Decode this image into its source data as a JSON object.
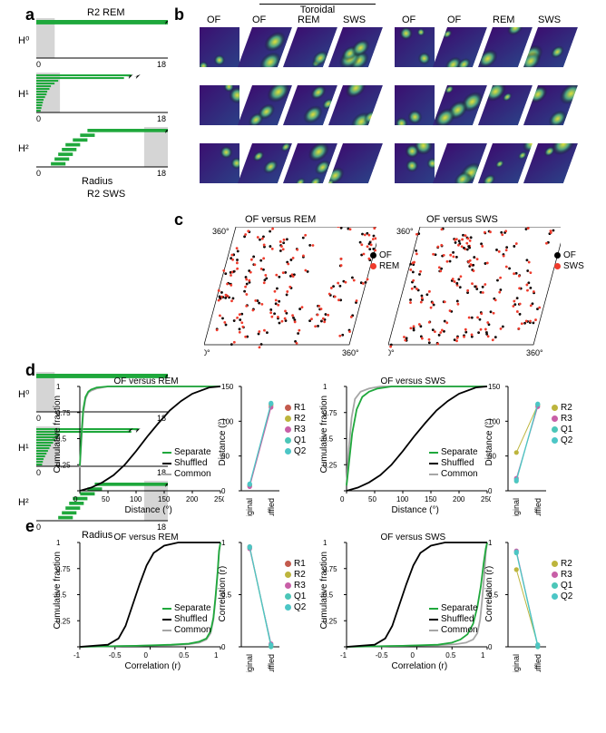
{
  "panel_labels": {
    "a": "a",
    "b": "b",
    "c": "c",
    "d": "d",
    "e": "e"
  },
  "barcode": {
    "rem_title": "R2 REM",
    "sws_title": "R2 SWS",
    "h0": "H⁰",
    "h1": "H¹",
    "h2": "H²",
    "xaxis": "Radius",
    "xmin": "0",
    "xmax": "18",
    "bar_color": "#1fa83c",
    "shade_color": "#d5d5d5",
    "rem": {
      "h0": [
        [
          0,
          18
        ]
      ],
      "h1": [
        [
          0,
          13
        ],
        [
          0,
          12
        ],
        [
          0,
          3
        ],
        [
          0,
          2.5
        ],
        [
          0,
          2
        ],
        [
          0,
          1.8
        ],
        [
          0,
          1.5
        ],
        [
          0,
          1.4
        ],
        [
          0,
          1.2
        ],
        [
          0,
          1.0
        ],
        [
          0,
          0.9
        ],
        [
          0,
          0.8
        ],
        [
          0,
          0.7
        ],
        [
          0,
          0.6
        ]
      ],
      "h2": [
        [
          7,
          18
        ],
        [
          6,
          8
        ],
        [
          5,
          7
        ],
        [
          4,
          6
        ],
        [
          3.5,
          5.5
        ],
        [
          3,
          5
        ],
        [
          2.5,
          4.5
        ],
        [
          2,
          4
        ]
      ]
    },
    "sws": {
      "h0": [
        [
          0,
          18
        ]
      ],
      "h1": [
        [
          0,
          14
        ],
        [
          0,
          13
        ],
        [
          0,
          3.2
        ],
        [
          0,
          3
        ],
        [
          0,
          2.6
        ],
        [
          0,
          2.3
        ],
        [
          0,
          2.0
        ],
        [
          0,
          1.8
        ],
        [
          0,
          1.6
        ],
        [
          0,
          1.4
        ],
        [
          0,
          1.2
        ],
        [
          0,
          1.0
        ],
        [
          0,
          0.9
        ],
        [
          0,
          0.8
        ]
      ],
      "h2": [
        [
          8,
          18
        ],
        [
          7,
          9
        ],
        [
          6,
          8
        ],
        [
          5,
          7
        ],
        [
          4.5,
          6.5
        ],
        [
          4,
          6
        ],
        [
          3.5,
          5.5
        ],
        [
          3,
          5
        ]
      ]
    }
  },
  "heatgrids": {
    "toroidal_label": "Toroidal",
    "col_labels": [
      "OF",
      "OF",
      "REM",
      "SWS"
    ],
    "colormap": {
      "low": "#3b0f70",
      "mid1": "#2c4087",
      "mid2": "#3b6d8f",
      "mid3": "#4aa285",
      "high": "#e8e337"
    }
  },
  "panel_c": {
    "rem_title": "OF versus REM",
    "sws_title": "OF versus SWS",
    "axis_0": "0°",
    "axis_360": "360°",
    "legend_of": "OF",
    "legend_rem": "REM",
    "legend_sws": "SWS",
    "of_color": "#000000",
    "rem_color": "#ef3b2c",
    "sws_color": "#ef3b2c"
  },
  "panel_d": {
    "rem_title": "OF versus REM",
    "sws_title": "OF versus SWS",
    "ylabel": "Cumulative fraction",
    "xlabel": "Distance (°)",
    "dist_ylabel": "Distance (°)",
    "xlim": [
      0,
      250
    ],
    "xticks": [
      0,
      50,
      100,
      150,
      200,
      250
    ],
    "ylim": [
      0,
      1
    ],
    "yticks": [
      0,
      0.25,
      0.5,
      0.75,
      1.0
    ],
    "dist_ylim": [
      0,
      150
    ],
    "dist_yticks": [
      0,
      50,
      100,
      150
    ],
    "xcat": [
      "Original",
      "Shuffled"
    ],
    "colors": {
      "separate": "#1fa83c",
      "shuffled": "#000000",
      "common": "#a6a6a6"
    },
    "legend": {
      "separate": "Separate",
      "shuffled": "Shuffled",
      "common": "Common"
    },
    "rem_curves": {
      "separate_x": [
        0,
        3,
        6,
        10,
        15,
        20,
        30,
        50,
        80,
        120,
        180,
        250
      ],
      "separate_y": [
        0.24,
        0.55,
        0.78,
        0.9,
        0.95,
        0.97,
        0.99,
        1,
        1,
        1,
        1,
        1
      ],
      "common_x": [
        0,
        3,
        6,
        10,
        15,
        20,
        30,
        50,
        80,
        120,
        180,
        250
      ],
      "common_y": [
        0.22,
        0.5,
        0.74,
        0.88,
        0.94,
        0.96,
        0.98,
        1,
        1,
        1,
        1,
        1
      ],
      "shuffled_x": [
        0,
        20,
        40,
        60,
        80,
        100,
        120,
        140,
        160,
        180,
        200,
        230,
        250
      ],
      "shuffled_y": [
        0,
        0.03,
        0.08,
        0.15,
        0.25,
        0.38,
        0.52,
        0.65,
        0.77,
        0.86,
        0.93,
        0.99,
        1
      ]
    },
    "sws_curves": {
      "separate_x": [
        0,
        5,
        10,
        18,
        28,
        40,
        55,
        80,
        120,
        180,
        250
      ],
      "separate_y": [
        0.05,
        0.3,
        0.55,
        0.78,
        0.9,
        0.95,
        0.98,
        1,
        1,
        1,
        1
      ],
      "common_x": [
        0,
        4,
        9,
        15,
        25,
        40,
        60,
        100,
        160,
        250
      ],
      "common_y": [
        0.06,
        0.4,
        0.7,
        0.88,
        0.95,
        0.98,
        1,
        1,
        1,
        1
      ],
      "shuffled_x": [
        0,
        20,
        40,
        60,
        80,
        100,
        120,
        140,
        160,
        180,
        200,
        230,
        250
      ],
      "shuffled_y": [
        0,
        0.03,
        0.08,
        0.15,
        0.25,
        0.38,
        0.52,
        0.65,
        0.77,
        0.86,
        0.93,
        0.99,
        1
      ]
    },
    "rat_colors": {
      "R1": "#c35a4d",
      "R2": "#bdb53d",
      "R3": "#c85fa7",
      "Q1": "#4cc6b8",
      "Q2": "#4cc6c6"
    },
    "rat_d_rem": {
      "R1": [
        8,
        124
      ],
      "R2": [
        7,
        122
      ],
      "R3": [
        6,
        120
      ],
      "Q1": [
        9,
        125
      ],
      "Q2": [
        10,
        126
      ]
    },
    "rat_d_sws": {
      "R2": [
        55,
        123
      ],
      "R3": [
        18,
        121
      ],
      "Q1": [
        14,
        124
      ],
      "Q2": [
        16,
        125
      ]
    }
  },
  "panel_e": {
    "rem_title": "OF versus REM",
    "sws_title": "OF versus SWS",
    "ylabel": "Cumulative fraction",
    "xlabel": "Correlation (r)",
    "corr_ylabel": "Correlation (r)",
    "xlim": [
      -1,
      1
    ],
    "xticks": [
      -1,
      -0.5,
      0,
      0.5,
      1
    ],
    "ylim": [
      0,
      1
    ],
    "yticks": [
      0,
      0.25,
      0.5,
      0.75,
      1.0
    ],
    "corr_ylim": [
      0,
      1
    ],
    "corr_yticks": [
      0,
      0.5,
      1.0
    ],
    "xcat": [
      "Original",
      "Shuffled"
    ],
    "colors": {
      "separate": "#1fa83c",
      "shuffled": "#000000",
      "common": "#a6a6a6"
    },
    "legend": {
      "separate": "Separate",
      "shuffled": "Shuffled",
      "common": "Common"
    },
    "rem_curves": {
      "shuffled_x": [
        -1,
        -0.6,
        -0.45,
        -0.35,
        -0.25,
        -0.15,
        -0.05,
        0.05,
        0.2,
        0.4,
        0.6,
        1
      ],
      "shuffled_y": [
        0,
        0.02,
        0.08,
        0.2,
        0.4,
        0.6,
        0.78,
        0.9,
        0.97,
        1,
        1,
        1
      ],
      "separate_x": [
        -1,
        -0.2,
        0.3,
        0.55,
        0.7,
        0.8,
        0.86,
        0.9,
        0.93,
        0.96,
        0.98,
        1
      ],
      "separate_y": [
        0,
        0.01,
        0.02,
        0.03,
        0.05,
        0.08,
        0.15,
        0.28,
        0.48,
        0.72,
        0.92,
        1
      ],
      "common_x": [
        -1,
        -0.2,
        0.3,
        0.55,
        0.7,
        0.8,
        0.86,
        0.9,
        0.93,
        0.96,
        0.98,
        1
      ],
      "common_y": [
        0,
        0.01,
        0.015,
        0.025,
        0.04,
        0.07,
        0.13,
        0.26,
        0.46,
        0.7,
        0.9,
        1
      ]
    },
    "sws_curves": {
      "shuffled_x": [
        -1,
        -0.6,
        -0.45,
        -0.35,
        -0.25,
        -0.15,
        -0.05,
        0.05,
        0.2,
        0.4,
        0.6,
        1
      ],
      "shuffled_y": [
        0,
        0.02,
        0.08,
        0.2,
        0.4,
        0.6,
        0.78,
        0.9,
        0.97,
        1,
        1,
        1
      ],
      "separate_x": [
        -1,
        -0.2,
        0.3,
        0.5,
        0.62,
        0.72,
        0.8,
        0.86,
        0.91,
        0.95,
        0.98,
        1
      ],
      "separate_y": [
        0,
        0.01,
        0.02,
        0.04,
        0.07,
        0.12,
        0.22,
        0.38,
        0.58,
        0.8,
        0.94,
        1
      ],
      "common_x": [
        -1,
        -0.2,
        0.3,
        0.55,
        0.7,
        0.8,
        0.86,
        0.9,
        0.93,
        0.96,
        0.98,
        1
      ],
      "common_y": [
        0,
        0.01,
        0.015,
        0.025,
        0.04,
        0.07,
        0.13,
        0.26,
        0.46,
        0.7,
        0.9,
        1
      ]
    },
    "rat_e_rem": {
      "R1": [
        0.96,
        0.02
      ],
      "R2": [
        0.95,
        0.01
      ],
      "R3": [
        0.94,
        0.03
      ],
      "Q1": [
        0.95,
        0.0
      ],
      "Q2": [
        0.96,
        0.02
      ]
    },
    "rat_e_sws": {
      "R2": [
        0.74,
        0.02
      ],
      "R3": [
        0.92,
        0.01
      ],
      "Q1": [
        0.9,
        0.0
      ],
      "Q2": [
        0.91,
        0.02
      ]
    }
  }
}
